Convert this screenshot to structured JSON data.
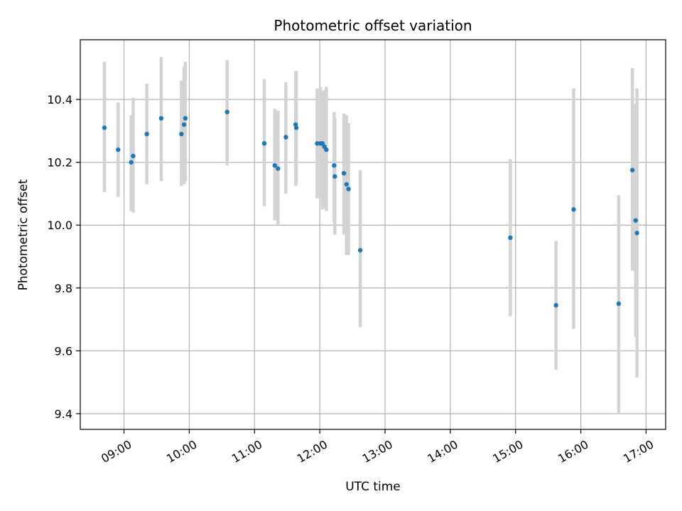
{
  "chart_data": {
    "type": "scatter",
    "title": "Photometric offset variation",
    "xlabel": "UTC time",
    "ylabel": "Photometric offset",
    "x_unit": "hours UTC",
    "xlim": [
      8.33,
      17.3
    ],
    "ylim": [
      9.35,
      10.59
    ],
    "x_ticks": [
      {
        "value": 9,
        "label": "09:00"
      },
      {
        "value": 10,
        "label": "10:00"
      },
      {
        "value": 11,
        "label": "11:00"
      },
      {
        "value": 12,
        "label": "12:00"
      },
      {
        "value": 13,
        "label": "13:00"
      },
      {
        "value": 14,
        "label": "14:00"
      },
      {
        "value": 15,
        "label": "15:00"
      },
      {
        "value": 16,
        "label": "16:00"
      },
      {
        "value": 17,
        "label": "17:00"
      }
    ],
    "y_ticks": [
      {
        "value": 9.4,
        "label": "9.4"
      },
      {
        "value": 9.6,
        "label": "9.6"
      },
      {
        "value": 9.8,
        "label": "9.8"
      },
      {
        "value": 10.0,
        "label": "10.0"
      },
      {
        "value": 10.2,
        "label": "10.2"
      },
      {
        "value": 10.4,
        "label": "10.4"
      }
    ],
    "grid": true,
    "marker_color": "#1f77b4",
    "errorbar_color": "#d3d3d3",
    "points": [
      {
        "x": 8.7,
        "y": 10.31,
        "ymin": 10.105,
        "ymax": 10.52
      },
      {
        "x": 8.91,
        "y": 10.24,
        "ymin": 10.09,
        "ymax": 10.39
      },
      {
        "x": 9.11,
        "y": 10.2,
        "ymin": 10.045,
        "ymax": 10.35
      },
      {
        "x": 9.14,
        "y": 10.22,
        "ymin": 10.04,
        "ymax": 10.405
      },
      {
        "x": 9.35,
        "y": 10.29,
        "ymin": 10.13,
        "ymax": 10.45
      },
      {
        "x": 9.57,
        "y": 10.34,
        "ymin": 10.14,
        "ymax": 10.535
      },
      {
        "x": 9.88,
        "y": 10.29,
        "ymin": 10.125,
        "ymax": 10.46
      },
      {
        "x": 9.92,
        "y": 10.32,
        "ymin": 10.13,
        "ymax": 10.505
      },
      {
        "x": 9.94,
        "y": 10.34,
        "ymin": 10.14,
        "ymax": 10.52
      },
      {
        "x": 10.58,
        "y": 10.36,
        "ymin": 10.19,
        "ymax": 10.525
      },
      {
        "x": 11.15,
        "y": 10.26,
        "ymin": 10.06,
        "ymax": 10.465
      },
      {
        "x": 11.31,
        "y": 10.19,
        "ymin": 10.015,
        "ymax": 10.37
      },
      {
        "x": 11.36,
        "y": 10.18,
        "ymin": 10.0,
        "ymax": 10.365
      },
      {
        "x": 11.48,
        "y": 10.28,
        "ymin": 10.1,
        "ymax": 10.455
      },
      {
        "x": 11.63,
        "y": 10.32,
        "ymin": 10.125,
        "ymax": 10.49
      },
      {
        "x": 11.64,
        "y": 10.31,
        "ymin": 10.13,
        "ymax": 10.49
      },
      {
        "x": 11.96,
        "y": 10.26,
        "ymin": 10.085,
        "ymax": 10.435
      },
      {
        "x": 12.01,
        "y": 10.26,
        "ymin": 10.09,
        "ymax": 10.44
      },
      {
        "x": 12.04,
        "y": 10.26,
        "ymin": 10.05,
        "ymax": 10.425
      },
      {
        "x": 12.07,
        "y": 10.25,
        "ymin": 10.055,
        "ymax": 10.43
      },
      {
        "x": 12.1,
        "y": 10.24,
        "ymin": 10.045,
        "ymax": 10.44
      },
      {
        "x": 12.22,
        "y": 10.19,
        "ymin": 10.01,
        "ymax": 10.36
      },
      {
        "x": 12.23,
        "y": 10.155,
        "ymin": 9.97,
        "ymax": 10.34
      },
      {
        "x": 12.37,
        "y": 10.165,
        "ymin": 9.97,
        "ymax": 10.355
      },
      {
        "x": 12.41,
        "y": 10.13,
        "ymin": 9.905,
        "ymax": 10.35
      },
      {
        "x": 12.44,
        "y": 10.115,
        "ymin": 9.905,
        "ymax": 10.325
      },
      {
        "x": 12.62,
        "y": 9.92,
        "ymin": 9.675,
        "ymax": 10.175
      },
      {
        "x": 14.92,
        "y": 9.96,
        "ymin": 9.71,
        "ymax": 10.21
      },
      {
        "x": 15.62,
        "y": 9.745,
        "ymin": 9.54,
        "ymax": 9.95
      },
      {
        "x": 15.89,
        "y": 10.05,
        "ymin": 9.67,
        "ymax": 10.435
      },
      {
        "x": 16.58,
        "y": 9.75,
        "ymin": 9.4,
        "ymax": 10.095
      },
      {
        "x": 16.79,
        "y": 10.175,
        "ymin": 9.855,
        "ymax": 10.5
      },
      {
        "x": 16.84,
        "y": 10.015,
        "ymin": 9.645,
        "ymax": 10.385
      },
      {
        "x": 16.86,
        "y": 9.975,
        "ymin": 9.515,
        "ymax": 10.435
      }
    ]
  }
}
